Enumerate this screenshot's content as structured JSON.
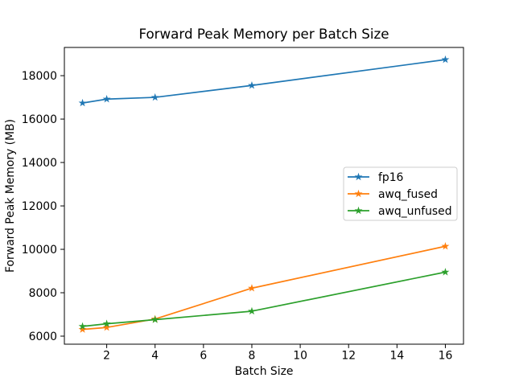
{
  "figure": {
    "background": "#ffffff"
  },
  "chart_data": {
    "type": "line",
    "title": "Forward Peak Memory per Batch Size",
    "xlabel": "Batch Size",
    "ylabel": "Forward Peak Memory (MB)",
    "x": [
      1,
      2,
      4,
      8,
      16
    ],
    "series": [
      {
        "name": "fp16",
        "color": "#1f77b4",
        "marker": "star",
        "values": [
          16740,
          16920,
          17000,
          17550,
          18740
        ]
      },
      {
        "name": "awq_fused",
        "color": "#ff7f0e",
        "marker": "star",
        "values": [
          6310,
          6400,
          6790,
          8210,
          10140
        ]
      },
      {
        "name": "awq_unfused",
        "color": "#2ca02c",
        "marker": "star",
        "values": [
          6450,
          6570,
          6760,
          7150,
          8950
        ]
      }
    ],
    "xticks": [
      2,
      4,
      6,
      8,
      10,
      12,
      14,
      16
    ],
    "yticks": [
      6000,
      8000,
      10000,
      12000,
      14000,
      16000,
      18000
    ],
    "xlim": [
      0.25,
      16.75
    ],
    "ylim": [
      5630,
      19300
    ],
    "grid": false,
    "legend": {
      "entries": [
        "fp16",
        "awq_fused",
        "awq_unfused"
      ],
      "position": "center-right",
      "border_color": "#cccccc",
      "background": "#ffffff"
    },
    "axis_color": "#000000",
    "text_color": "#000000"
  }
}
